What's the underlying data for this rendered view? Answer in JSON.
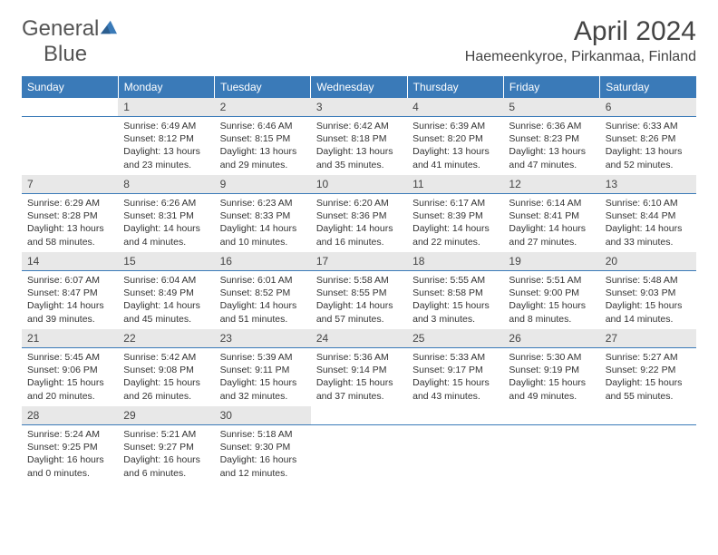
{
  "brand": {
    "part1": "General",
    "part2": "Blue"
  },
  "title": "April 2024",
  "location": "Haemeenkyroe, Pirkanmaa, Finland",
  "colors": {
    "header_bg": "#3a7ab8",
    "header_fg": "#ffffff",
    "daynum_bg": "#e8e8e8",
    "rule": "#3a7ab8",
    "text": "#333333",
    "title_text": "#444444"
  },
  "weekdays": [
    "Sunday",
    "Monday",
    "Tuesday",
    "Wednesday",
    "Thursday",
    "Friday",
    "Saturday"
  ],
  "weeks": [
    [
      null,
      {
        "n": 1,
        "sr": "6:49 AM",
        "ss": "8:12 PM",
        "dl": "13 hours and 23 minutes."
      },
      {
        "n": 2,
        "sr": "6:46 AM",
        "ss": "8:15 PM",
        "dl": "13 hours and 29 minutes."
      },
      {
        "n": 3,
        "sr": "6:42 AM",
        "ss": "8:18 PM",
        "dl": "13 hours and 35 minutes."
      },
      {
        "n": 4,
        "sr": "6:39 AM",
        "ss": "8:20 PM",
        "dl": "13 hours and 41 minutes."
      },
      {
        "n": 5,
        "sr": "6:36 AM",
        "ss": "8:23 PM",
        "dl": "13 hours and 47 minutes."
      },
      {
        "n": 6,
        "sr": "6:33 AM",
        "ss": "8:26 PM",
        "dl": "13 hours and 52 minutes."
      }
    ],
    [
      {
        "n": 7,
        "sr": "6:29 AM",
        "ss": "8:28 PM",
        "dl": "13 hours and 58 minutes."
      },
      {
        "n": 8,
        "sr": "6:26 AM",
        "ss": "8:31 PM",
        "dl": "14 hours and 4 minutes."
      },
      {
        "n": 9,
        "sr": "6:23 AM",
        "ss": "8:33 PM",
        "dl": "14 hours and 10 minutes."
      },
      {
        "n": 10,
        "sr": "6:20 AM",
        "ss": "8:36 PM",
        "dl": "14 hours and 16 minutes."
      },
      {
        "n": 11,
        "sr": "6:17 AM",
        "ss": "8:39 PM",
        "dl": "14 hours and 22 minutes."
      },
      {
        "n": 12,
        "sr": "6:14 AM",
        "ss": "8:41 PM",
        "dl": "14 hours and 27 minutes."
      },
      {
        "n": 13,
        "sr": "6:10 AM",
        "ss": "8:44 PM",
        "dl": "14 hours and 33 minutes."
      }
    ],
    [
      {
        "n": 14,
        "sr": "6:07 AM",
        "ss": "8:47 PM",
        "dl": "14 hours and 39 minutes."
      },
      {
        "n": 15,
        "sr": "6:04 AM",
        "ss": "8:49 PM",
        "dl": "14 hours and 45 minutes."
      },
      {
        "n": 16,
        "sr": "6:01 AM",
        "ss": "8:52 PM",
        "dl": "14 hours and 51 minutes."
      },
      {
        "n": 17,
        "sr": "5:58 AM",
        "ss": "8:55 PM",
        "dl": "14 hours and 57 minutes."
      },
      {
        "n": 18,
        "sr": "5:55 AM",
        "ss": "8:58 PM",
        "dl": "15 hours and 3 minutes."
      },
      {
        "n": 19,
        "sr": "5:51 AM",
        "ss": "9:00 PM",
        "dl": "15 hours and 8 minutes."
      },
      {
        "n": 20,
        "sr": "5:48 AM",
        "ss": "9:03 PM",
        "dl": "15 hours and 14 minutes."
      }
    ],
    [
      {
        "n": 21,
        "sr": "5:45 AM",
        "ss": "9:06 PM",
        "dl": "15 hours and 20 minutes."
      },
      {
        "n": 22,
        "sr": "5:42 AM",
        "ss": "9:08 PM",
        "dl": "15 hours and 26 minutes."
      },
      {
        "n": 23,
        "sr": "5:39 AM",
        "ss": "9:11 PM",
        "dl": "15 hours and 32 minutes."
      },
      {
        "n": 24,
        "sr": "5:36 AM",
        "ss": "9:14 PM",
        "dl": "15 hours and 37 minutes."
      },
      {
        "n": 25,
        "sr": "5:33 AM",
        "ss": "9:17 PM",
        "dl": "15 hours and 43 minutes."
      },
      {
        "n": 26,
        "sr": "5:30 AM",
        "ss": "9:19 PM",
        "dl": "15 hours and 49 minutes."
      },
      {
        "n": 27,
        "sr": "5:27 AM",
        "ss": "9:22 PM",
        "dl": "15 hours and 55 minutes."
      }
    ],
    [
      {
        "n": 28,
        "sr": "5:24 AM",
        "ss": "9:25 PM",
        "dl": "16 hours and 0 minutes."
      },
      {
        "n": 29,
        "sr": "5:21 AM",
        "ss": "9:27 PM",
        "dl": "16 hours and 6 minutes."
      },
      {
        "n": 30,
        "sr": "5:18 AM",
        "ss": "9:30 PM",
        "dl": "16 hours and 12 minutes."
      },
      null,
      null,
      null,
      null
    ]
  ],
  "labels": {
    "sunrise": "Sunrise: ",
    "sunset": "Sunset: ",
    "daylight": "Daylight: "
  }
}
